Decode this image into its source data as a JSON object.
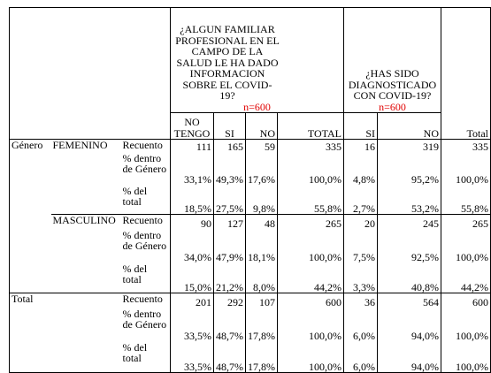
{
  "header": {
    "group1": {
      "title": "¿ALGUN FAMILIAR PROFESIONAL EN EL CAMPO DE LA SALUD LE HA DADO INFORMACION SOBRE EL COVID-19?",
      "n": "n=600"
    },
    "group2": {
      "title": "¿HAS SIDO DIAGNOSTICADO CON COVID-19?",
      "n": "n=600"
    },
    "columns": [
      "NO TENGO",
      "SI",
      "NO",
      "TOTAL",
      "SI",
      "NO",
      "Total"
    ]
  },
  "groups": [
    {
      "section": "Género",
      "subgroup": "FEMENINO",
      "rows": [
        {
          "label": "Recuento",
          "cells": [
            "111",
            "165",
            "59",
            "335",
            "16",
            "319",
            "335"
          ]
        },
        {
          "label": "% dentro de Género",
          "cells": [
            "33,1%",
            "49,3%",
            "17,6%",
            "100,0%",
            "4,8%",
            "95,2%",
            "100,0%"
          ]
        },
        {
          "label": "% del total",
          "cells": [
            "18,5%",
            "27,5%",
            "9,8%",
            "55,8%",
            "2,7%",
            "53,2%",
            "55,8%"
          ]
        }
      ]
    },
    {
      "subgroup": "MASCULINO",
      "rows": [
        {
          "label": "Recuento",
          "cells": [
            "90",
            "127",
            "48",
            "265",
            "20",
            "245",
            "265"
          ]
        },
        {
          "label": "% dentro de Género",
          "cells": [
            "34,0%",
            "47,9%",
            "18,1%",
            "100,0%",
            "7,5%",
            "92,5%",
            "100,0%"
          ]
        },
        {
          "label": "% del total",
          "cells": [
            "15,0%",
            "21,2%",
            "8,0%",
            "44,2%",
            "3,3%",
            "40,8%",
            "44,2%"
          ]
        }
      ]
    },
    {
      "section": "Total",
      "rows": [
        {
          "label": "Recuento",
          "cells": [
            "201",
            "292",
            "107",
            "600",
            "36",
            "564",
            "600"
          ]
        },
        {
          "label": "% dentro de Género",
          "cells": [
            "33,5%",
            "48,7%",
            "17,8%",
            "100,0%",
            "6,0%",
            "94,0%",
            "100,0%"
          ]
        },
        {
          "label": "% del total",
          "cells": [
            "33,5%",
            "48,7%",
            "17,8%",
            "100,0%",
            "6,0%",
            "94,0%",
            "100,0%"
          ]
        }
      ]
    }
  ]
}
